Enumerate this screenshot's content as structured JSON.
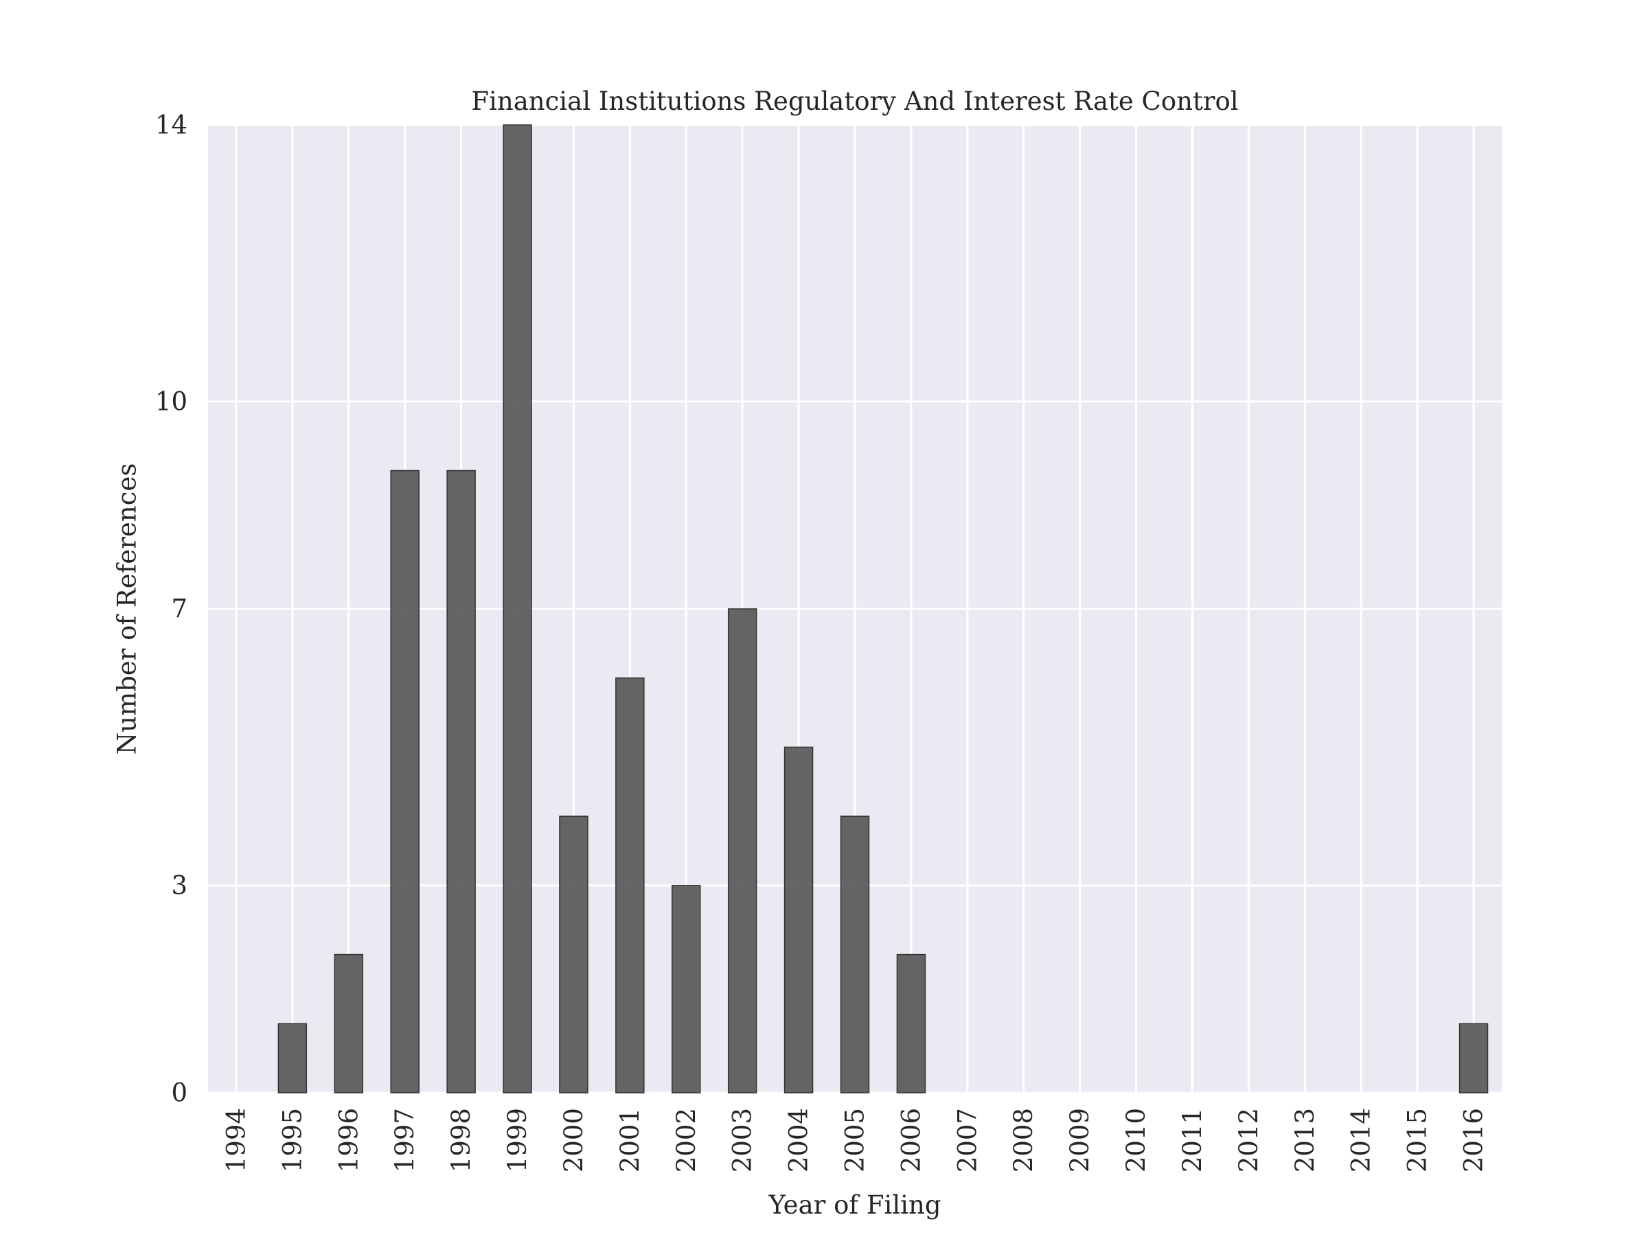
{
  "chart_data": {
    "type": "bar",
    "title": "Financial Institutions Regulatory And Interest Rate Control",
    "xlabel": "Year of Filing",
    "ylabel": "Number of References",
    "categories": [
      "1994",
      "1995",
      "1996",
      "1997",
      "1998",
      "1999",
      "2000",
      "2001",
      "2002",
      "2003",
      "2004",
      "2005",
      "2006",
      "2007",
      "2008",
      "2009",
      "2010",
      "2011",
      "2012",
      "2013",
      "2014",
      "2015",
      "2016"
    ],
    "values": [
      0,
      1,
      2,
      9,
      9,
      14,
      4,
      6,
      3,
      7,
      5,
      4,
      2,
      0,
      0,
      0,
      0,
      0,
      0,
      0,
      0,
      0,
      1
    ],
    "yticks": [
      0,
      3,
      7,
      10,
      14
    ],
    "ylim": [
      0,
      14
    ],
    "grid": true,
    "colors": {
      "background": "#eaeaf2",
      "grid": "#ffffff",
      "bar": "#555555",
      "bar_edge": "#333333"
    }
  }
}
